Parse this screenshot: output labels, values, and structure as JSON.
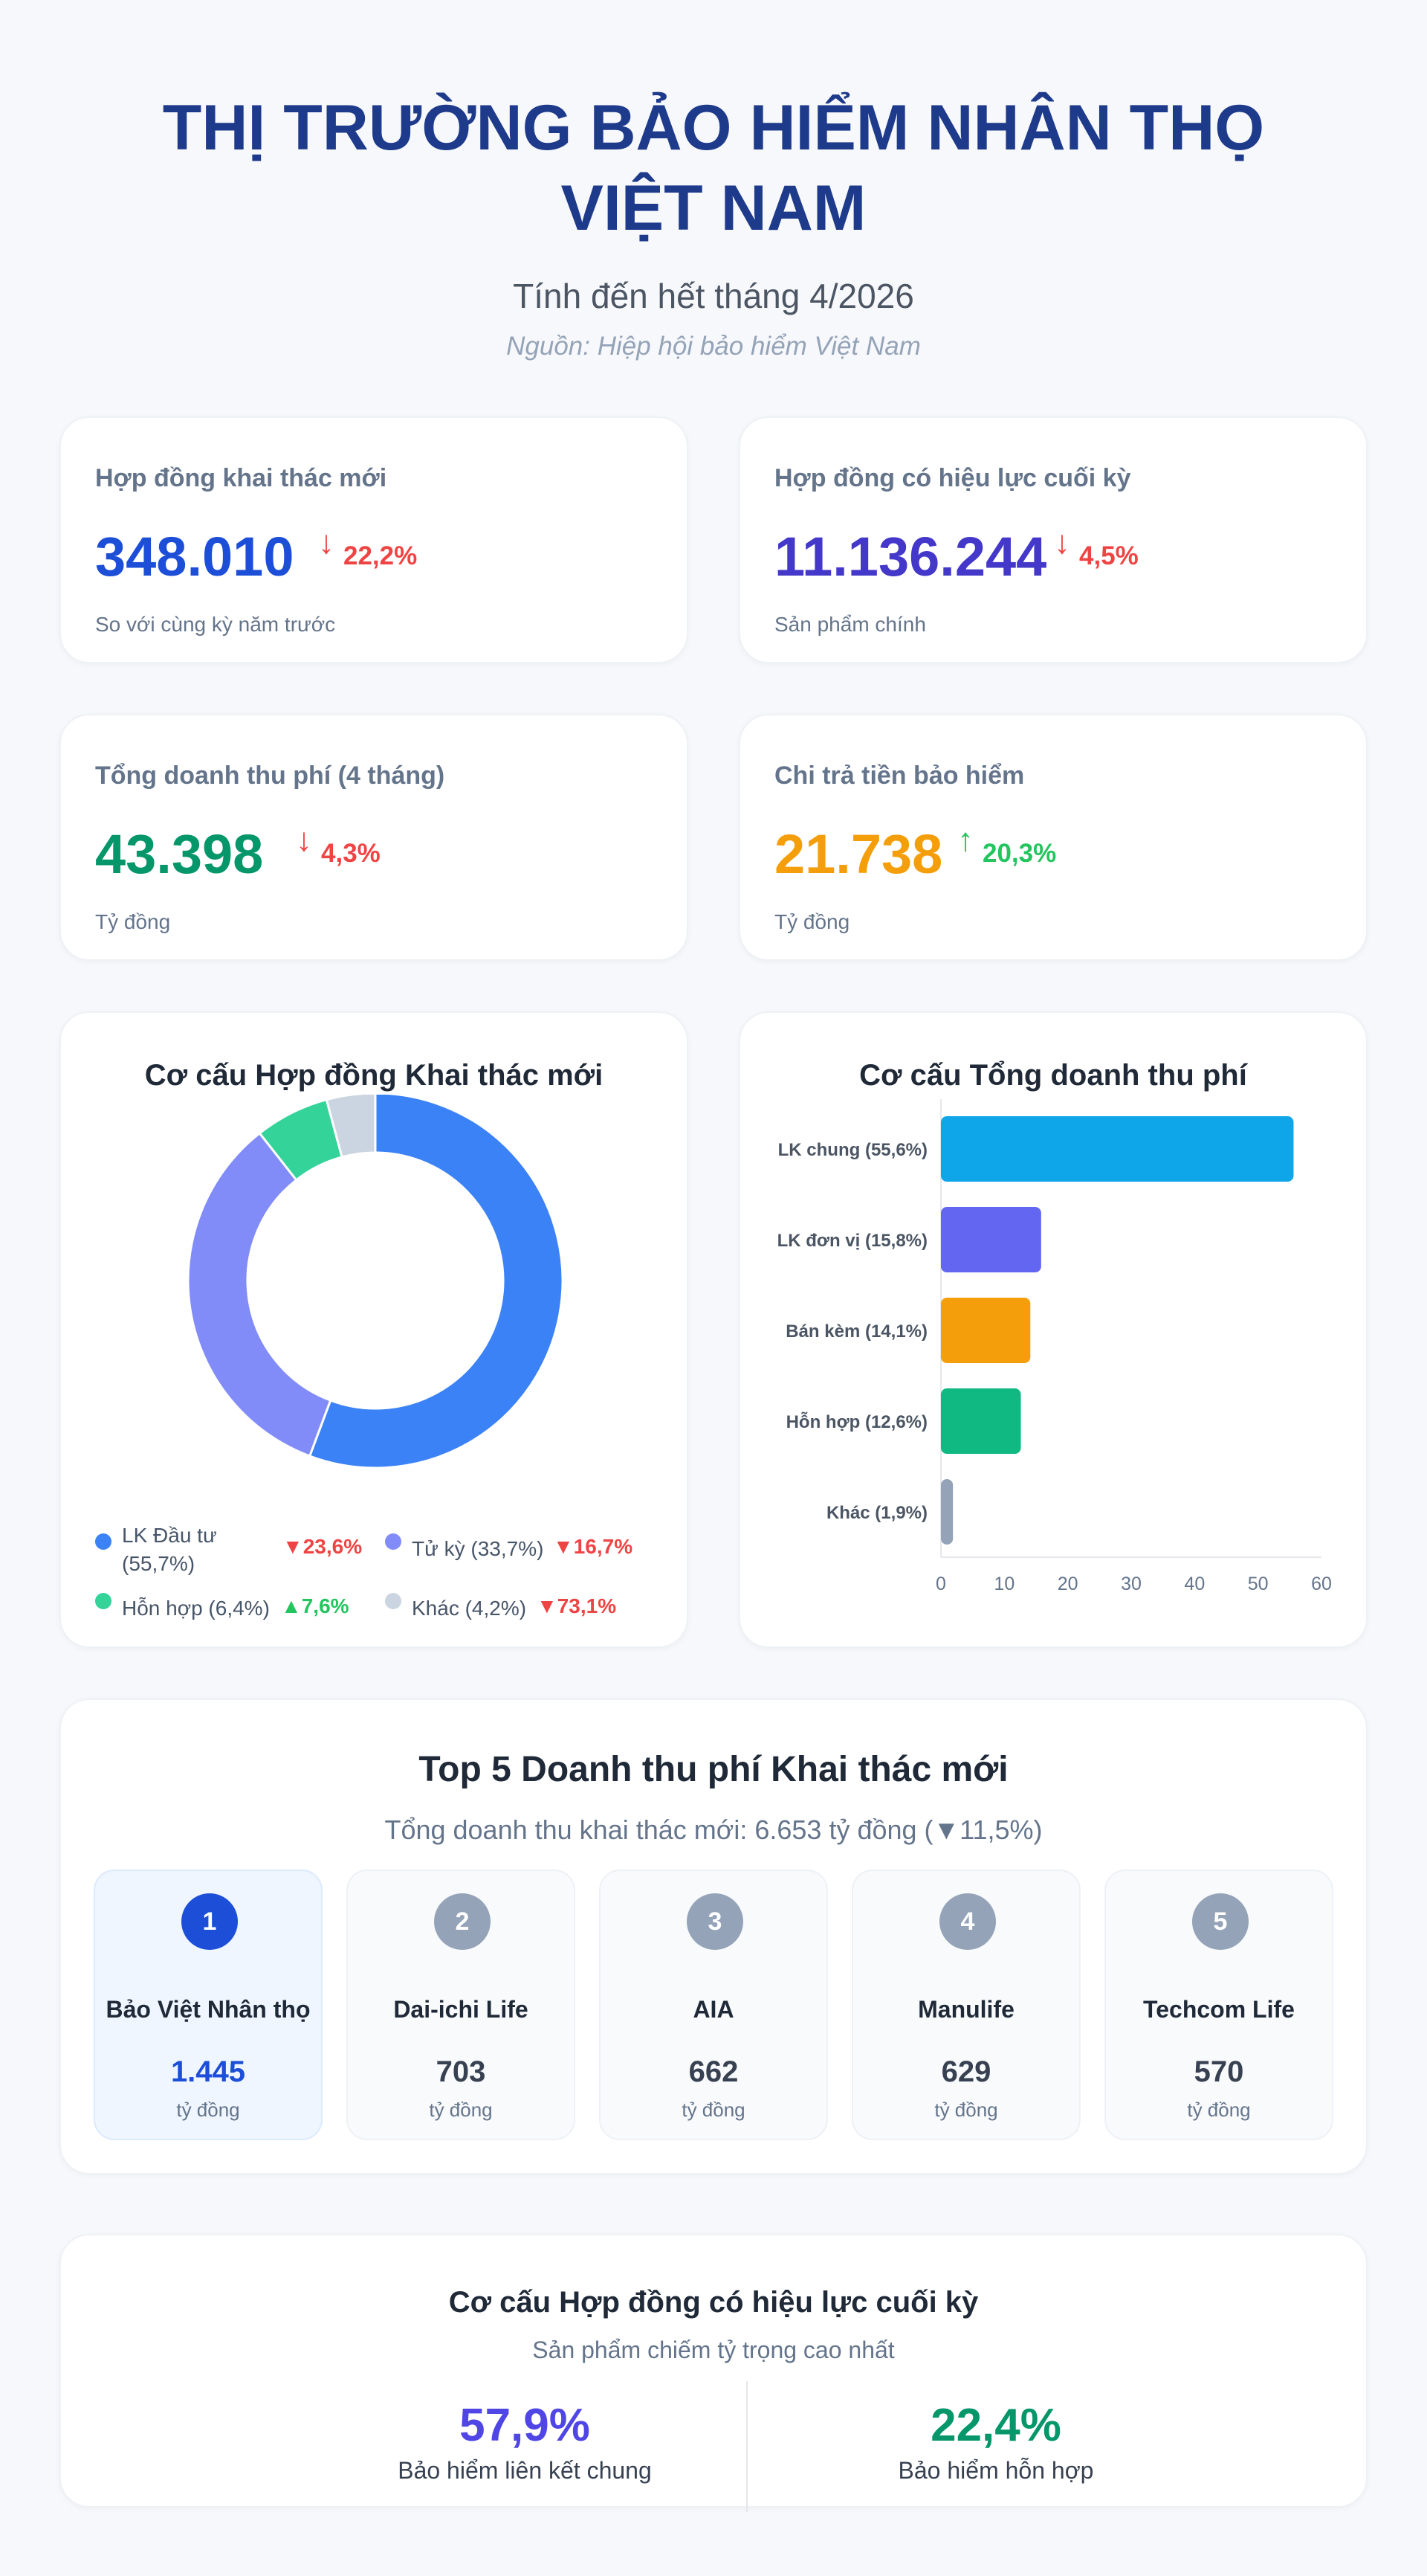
{
  "header": {
    "title_line1": "THỊ TRƯỜNG BẢO HIỂM NHÂN THỌ",
    "title_line2": "VIỆT NAM",
    "subtitle": "Tính đến hết tháng 4/2026",
    "source": "Nguồn: Hiệp hội bảo hiểm Việt Nam"
  },
  "kpis": [
    {
      "label": "Hợp đồng khai thác mới",
      "value": "348.010",
      "direction": "down",
      "arrow": "↓",
      "change": "22,2%",
      "note": "So với cùng kỳ năm trước",
      "color": "#1d4ed8"
    },
    {
      "label": "Hợp đồng có hiệu lực cuối kỳ",
      "value": "11.136.244",
      "direction": "down",
      "arrow": "↓",
      "change": "4,5%",
      "note": "Sản phẩm chính",
      "color": "#4338ca"
    },
    {
      "label": "Tổng doanh thu phí (4 tháng)",
      "value": "43.398",
      "direction": "down",
      "arrow": "↓",
      "change": "4,3%",
      "note": "Tỷ đồng",
      "color": "#059669"
    },
    {
      "label": "Chi trả tiền bảo hiểm",
      "value": "21.738",
      "direction": "up",
      "arrow": "↑",
      "change": "20,3%",
      "note": "Tỷ đồng",
      "color": "#f59e0b"
    }
  ],
  "chart_data": [
    {
      "type": "pie",
      "title": "Cơ cấu Hợp đồng Khai thác mới",
      "donut": true,
      "slices": [
        {
          "label": "LK Đầu tư (55,7%)",
          "label_line1": "LK Đầu tư",
          "label_line2": "(55,7%)",
          "value": 55.7,
          "change": "▼23,6%",
          "direction": "down",
          "color": "#3b82f6"
        },
        {
          "label": "Tử kỳ (33,7%)",
          "value": 33.7,
          "change": "▼16,7%",
          "direction": "down",
          "color": "#818cf8"
        },
        {
          "label": "Hỗn hợp (6,4%)",
          "value": 6.4,
          "change": "▲7,6%",
          "direction": "up",
          "color": "#34d399"
        },
        {
          "label": "Khác (4,2%)",
          "value": 4.2,
          "change": "▼73,1%",
          "direction": "down",
          "color": "#cbd5e1"
        }
      ],
      "legend_position": "bottom"
    },
    {
      "type": "bar",
      "orientation": "horizontal",
      "title": "Cơ cấu Tổng doanh thu phí",
      "categories": [
        "LK chung (55,6%)",
        "LK đơn vị (15,8%)",
        "Bán kèm (14,1%)",
        "Hỗn hợp (12,6%)",
        "Khác (1,9%)"
      ],
      "values": [
        55.6,
        15.8,
        14.1,
        12.6,
        1.9
      ],
      "colors": [
        "#0ea5e9",
        "#6366f1",
        "#f59e0b",
        "#10b981",
        "#94a3b8"
      ],
      "xlim": [
        0,
        60
      ],
      "xticks": [
        "0",
        "10",
        "20",
        "30",
        "40",
        "50",
        "60"
      ],
      "grid": false
    }
  ],
  "top5": {
    "title": "Top 5 Doanh thu phí Khai thác mới",
    "subtitle": "Tổng doanh thu khai thác mới: 6.653 tỷ đồng (▼11,5%)",
    "items": [
      {
        "rank": "1",
        "name": "Bảo Việt Nhân thọ",
        "value": "1.445",
        "unit": "tỷ đồng"
      },
      {
        "rank": "2",
        "name": "Dai-ichi Life",
        "value": "703",
        "unit": "tỷ đồng"
      },
      {
        "rank": "3",
        "name": "AIA",
        "value": "662",
        "unit": "tỷ đồng"
      },
      {
        "rank": "4",
        "name": "Manulife",
        "value": "629",
        "unit": "tỷ đồng"
      },
      {
        "rank": "5",
        "name": "Techcom Life",
        "value": "570",
        "unit": "tỷ đồng"
      }
    ]
  },
  "structure": {
    "title": "Cơ cấu Hợp đồng có hiệu lực cuối kỳ",
    "subtitle": "Sản phẩm chiếm tỷ trọng cao nhất",
    "stats": [
      {
        "value": "57,9%",
        "label": "Bảo hiểm liên kết chung",
        "color": "#4f46e5"
      },
      {
        "value": "22,4%",
        "label": "Bảo hiểm hỗn hợp",
        "color": "#059669"
      }
    ]
  }
}
